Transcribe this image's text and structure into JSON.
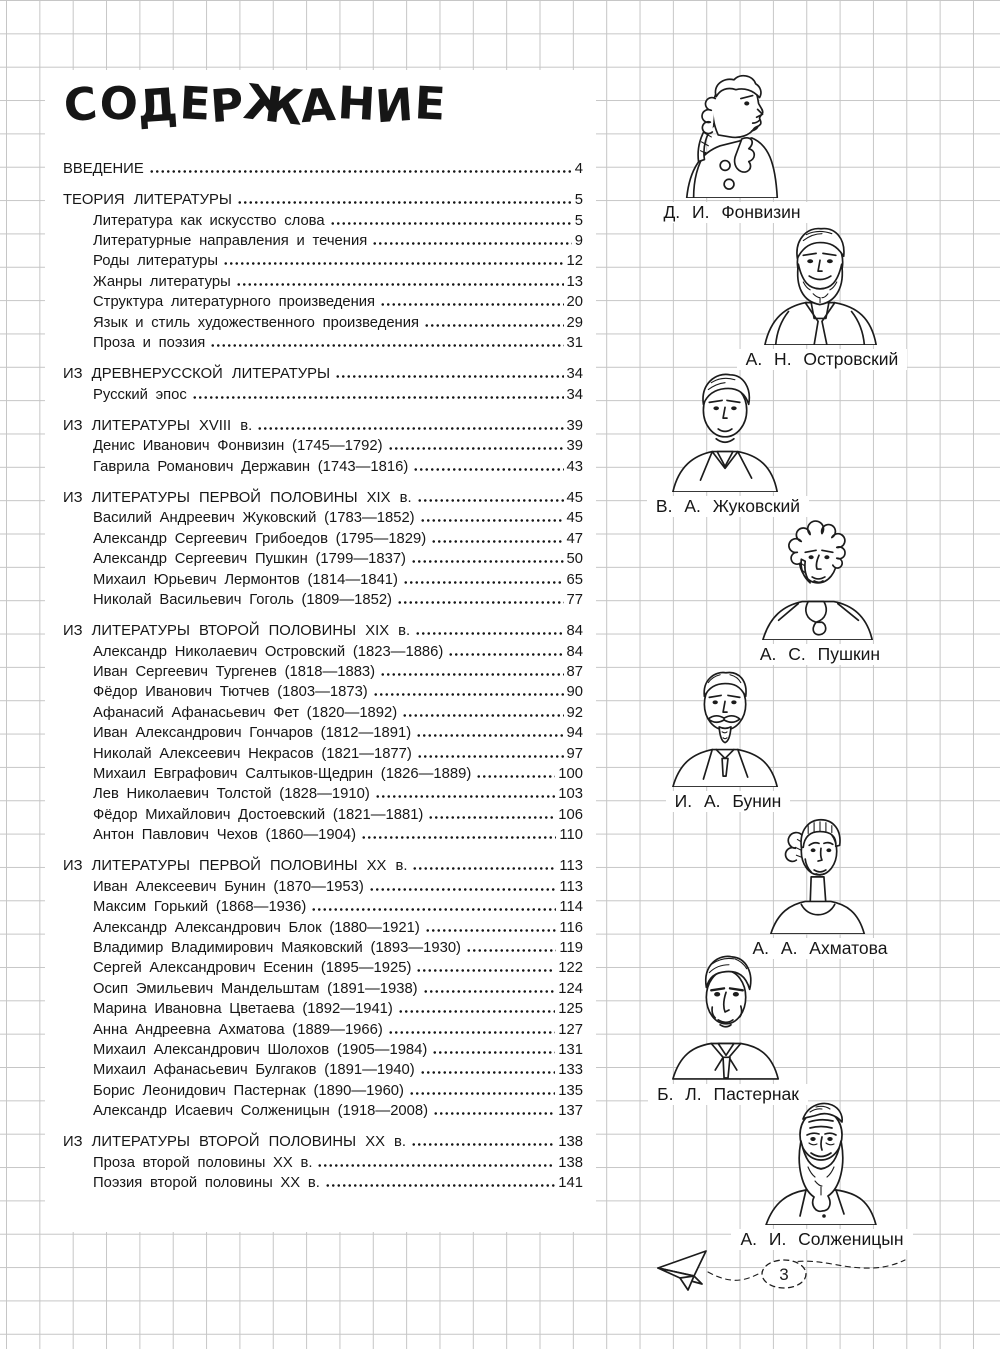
{
  "page": {
    "title": "СОДЕРЖАНИЕ",
    "page_number": "3"
  },
  "toc": {
    "sections": [
      {
        "title": "ВВЕДЕНИЕ",
        "page": "4",
        "items": []
      },
      {
        "title": "ТЕОРИЯ ЛИТЕРАТУРЫ",
        "page": "5",
        "items": [
          {
            "label": "Литература как искусство слова",
            "page": "5"
          },
          {
            "label": "Литературные направления и течения",
            "page": "9"
          },
          {
            "label": "Роды литературы",
            "page": "12"
          },
          {
            "label": "Жанры литературы",
            "page": "13"
          },
          {
            "label": "Структура литературного произведения",
            "page": "20"
          },
          {
            "label": "Язык и стиль художественного произведения",
            "page": "29"
          },
          {
            "label": "Проза и поэзия",
            "page": "31"
          }
        ]
      },
      {
        "title": "ИЗ ДРЕВНЕРУССКОЙ ЛИТЕРАТУРЫ",
        "page": "34",
        "items": [
          {
            "label": "Русский эпос",
            "page": "34"
          }
        ]
      },
      {
        "title": "ИЗ ЛИТЕРАТУРЫ XVIII в.",
        "page": "39",
        "items": [
          {
            "label": "Денис Иванович Фонвизин (1745—1792)",
            "page": "39"
          },
          {
            "label": "Гаврила Романович Державин (1743—1816)",
            "page": "43"
          }
        ]
      },
      {
        "title": "ИЗ ЛИТЕРАТУРЫ ПЕРВОЙ ПОЛОВИНЫ XIX в.",
        "page": "45",
        "items": [
          {
            "label": "Василий Андреевич Жуковский (1783—1852)",
            "page": "45"
          },
          {
            "label": "Александр Сергеевич Грибоедов (1795—1829)",
            "page": "47"
          },
          {
            "label": "Александр Сергеевич Пушкин (1799—1837)",
            "page": "50"
          },
          {
            "label": "Михаил Юрьевич Лермонтов (1814—1841)",
            "page": "65"
          },
          {
            "label": "Николай Васильевич Гоголь (1809—1852)",
            "page": "77"
          }
        ]
      },
      {
        "title": "ИЗ ЛИТЕРАТУРЫ ВТОРОЙ ПОЛОВИНЫ XIX в.",
        "page": "84",
        "items": [
          {
            "label": "Александр Николаевич Островский (1823—1886)",
            "page": "84"
          },
          {
            "label": "Иван Сергеевич Тургенев (1818—1883)",
            "page": "87"
          },
          {
            "label": "Фёдор Иванович Тютчев (1803—1873)",
            "page": "90"
          },
          {
            "label": "Афанасий Афанасьевич Фет (1820—1892)",
            "page": "92"
          },
          {
            "label": "Иван Александрович Гончаров (1812—1891)",
            "page": "94"
          },
          {
            "label": "Николай Алексеевич Некрасов (1821—1877)",
            "page": "97"
          },
          {
            "label": "Михаил Евграфович Салтыков-Щедрин (1826—1889)",
            "page": "100"
          },
          {
            "label": "Лев Николаевич Толстой (1828—1910)",
            "page": "103"
          },
          {
            "label": "Фёдор Михайлович Достоевский (1821—1881)",
            "page": "106"
          },
          {
            "label": "Антон Павлович Чехов (1860—1904)",
            "page": "110"
          }
        ]
      },
      {
        "title": "ИЗ ЛИТЕРАТУРЫ ПЕРВОЙ ПОЛОВИНЫ XX в.",
        "page": "113",
        "items": [
          {
            "label": "Иван Алексеевич Бунин (1870—1953)",
            "page": "113"
          },
          {
            "label": "Максим Горький (1868—1936)",
            "page": "114"
          },
          {
            "label": "Александр Александрович Блок (1880—1921)",
            "page": "116"
          },
          {
            "label": "Владимир Владимирович Маяковский (1893—1930)",
            "page": "119"
          },
          {
            "label": "Сергей Александрович Есенин (1895—1925)",
            "page": "122"
          },
          {
            "label": "Осип Эмильевич Мандельштам (1891—1938)",
            "page": "124"
          },
          {
            "label": "Марина Ивановна Цветаева (1892—1941)",
            "page": "125"
          },
          {
            "label": "Анна Андреевна Ахматова (1889—1966)",
            "page": "127"
          },
          {
            "label": "Михаил Александрович Шолохов (1905—1984)",
            "page": "131"
          },
          {
            "label": "Михаил Афанасьевич Булгаков (1891—1940)",
            "page": "133"
          },
          {
            "label": "Борис Леонидович Пастернак (1890—1960)",
            "page": "135"
          },
          {
            "label": "Александр Исаевич Солженицын (1918—2008)",
            "page": "137"
          }
        ]
      },
      {
        "title": "ИЗ ЛИТЕРАТУРЫ ВТОРОЙ ПОЛОВИНЫ XX в.",
        "page": "138",
        "items": [
          {
            "label": "Проза второй половины XX в.",
            "page": "138"
          },
          {
            "label": "Поэзия второй половины XX в.",
            "page": "141"
          }
        ]
      }
    ]
  },
  "portraits": [
    {
      "caption": "Д. И. Фонвизин"
    },
    {
      "caption": "А. Н. Островский"
    },
    {
      "caption": "В. А. Жуковский"
    },
    {
      "caption": "А. С. Пушкин"
    },
    {
      "caption": "И. А. Бунин"
    },
    {
      "caption": "А. А. Ахматова"
    },
    {
      "caption": "Б. Л. Пастернак"
    },
    {
      "caption": "А. И. Солженицын"
    }
  ]
}
